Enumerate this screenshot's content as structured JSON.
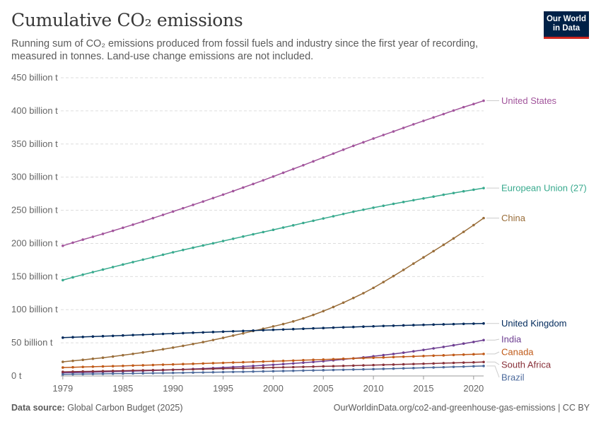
{
  "header": {
    "title": "Cumulative CO₂ emissions",
    "subtitle": "Running sum of CO₂ emissions produced from fossil fuels and industry since the first year of recording, measured in tonnes. Land-use change emissions are not included.",
    "logo_line1": "Our World",
    "logo_line2": "in Data"
  },
  "footer": {
    "source_label": "Data source:",
    "source_value": "Global Carbon Budget (2025)",
    "url": "OurWorldinData.org/co2-and-greenhouse-gas-emissions | CC BY"
  },
  "chart_data": {
    "type": "line",
    "title": "Cumulative CO₂ emissions",
    "x": [
      1979,
      1980,
      1981,
      1982,
      1983,
      1984,
      1985,
      1986,
      1987,
      1988,
      1989,
      1990,
      1991,
      1992,
      1993,
      1994,
      1995,
      1996,
      1997,
      1998,
      1999,
      2000,
      2001,
      2002,
      2003,
      2004,
      2005,
      2006,
      2007,
      2008,
      2009,
      2010,
      2011,
      2012,
      2013,
      2014,
      2015,
      2016,
      2017,
      2018,
      2019,
      2020,
      2021
    ],
    "xlim": [
      1978.8,
      2021
    ],
    "ylim": [
      0,
      450
    ],
    "y_ticks": [
      0,
      50,
      100,
      150,
      200,
      250,
      300,
      350,
      400,
      450
    ],
    "y_tick_labels": [
      "0 t",
      "50 billion t",
      "100 billion t",
      "150 billion t",
      "200 billion t",
      "250 billion t",
      "300 billion t",
      "350 billion t",
      "400 billion t",
      "450 billion t"
    ],
    "x_ticks": [
      1979,
      1985,
      1990,
      1995,
      2000,
      2005,
      2010,
      2015,
      2020
    ],
    "x_tick_labels": [
      "1979",
      "1985",
      "1990",
      "1995",
      "2000",
      "2005",
      "2010",
      "2015",
      "2020"
    ],
    "grid": true,
    "legend": "right",
    "units": "billion t",
    "series": [
      {
        "name": "United States",
        "color": "#a2559c",
        "values": [
          196.4,
          201.1,
          205.7,
          210.0,
          214.4,
          219.0,
          223.6,
          228.3,
          233.1,
          238.1,
          243.1,
          248.1,
          253.1,
          258.1,
          263.2,
          268.4,
          273.6,
          278.9,
          284.3,
          289.7,
          295.2,
          300.9,
          306.6,
          312.3,
          318.0,
          323.8,
          329.7,
          335.5,
          341.4,
          347.2,
          352.6,
          358.2,
          363.6,
          368.9,
          374.3,
          379.7,
          384.9,
          390.1,
          395.2,
          400.5,
          405.6,
          410.3,
          415.3
        ]
      },
      {
        "name": "European Union (27)",
        "color": "#38aa8e",
        "values": [
          144.6,
          148.8,
          152.8,
          156.7,
          160.5,
          164.3,
          168.1,
          171.8,
          175.5,
          179.2,
          182.9,
          186.6,
          190.1,
          193.5,
          196.9,
          200.2,
          203.6,
          207.0,
          210.4,
          213.8,
          217.1,
          220.5,
          223.9,
          227.3,
          230.8,
          234.2,
          237.6,
          241.0,
          244.4,
          247.8,
          250.8,
          253.9,
          256.8,
          259.7,
          262.5,
          265.2,
          267.9,
          270.6,
          273.4,
          276.0,
          278.6,
          281.0,
          283.5
        ]
      },
      {
        "name": "China",
        "color": "#996d39",
        "values": [
          21.3,
          22.8,
          24.3,
          25.9,
          27.5,
          29.3,
          31.3,
          33.3,
          35.5,
          37.9,
          40.3,
          42.8,
          45.4,
          48.2,
          51.1,
          54.2,
          57.5,
          60.9,
          64.3,
          67.8,
          71.2,
          74.7,
          78.3,
          82.3,
          86.9,
          92.1,
          97.8,
          104.0,
          110.6,
          117.6,
          124.9,
          132.9,
          141.7,
          150.7,
          160.0,
          169.5,
          178.9,
          188.3,
          197.8,
          207.5,
          217.4,
          227.6,
          238.2
        ]
      },
      {
        "name": "United Kingdom",
        "color": "#00295b",
        "values": [
          57.8,
          58.4,
          58.9,
          59.5,
          60.0,
          60.5,
          61.1,
          61.7,
          62.2,
          62.8,
          63.4,
          64.0,
          64.6,
          65.2,
          65.7,
          66.3,
          66.8,
          67.4,
          67.9,
          68.5,
          69.0,
          69.6,
          70.1,
          70.7,
          71.2,
          71.8,
          72.3,
          72.9,
          73.4,
          73.9,
          74.4,
          74.9,
          75.4,
          75.8,
          76.3,
          76.7,
          77.1,
          77.5,
          77.9,
          78.2,
          78.6,
          78.9,
          79.2
        ]
      },
      {
        "name": "India",
        "color": "#6d3e91",
        "values": [
          4.8,
          5.1,
          5.4,
          5.7,
          6.1,
          6.5,
          6.9,
          7.3,
          7.7,
          8.2,
          8.7,
          9.3,
          9.9,
          10.5,
          11.1,
          11.8,
          12.6,
          13.4,
          14.2,
          15.1,
          16.0,
          16.9,
          17.9,
          18.9,
          20.0,
          21.1,
          22.3,
          23.6,
          25.0,
          26.5,
          28.0,
          29.7,
          31.4,
          33.2,
          35.1,
          37.2,
          39.3,
          41.6,
          43.8,
          46.3,
          48.8,
          51.3,
          54.1
        ]
      },
      {
        "name": "Canada",
        "color": "#c05917",
        "values": [
          12.7,
          13.1,
          13.6,
          14.0,
          14.4,
          14.8,
          15.2,
          15.7,
          16.1,
          16.5,
          17.0,
          17.4,
          17.9,
          18.3,
          18.8,
          19.3,
          19.7,
          20.2,
          20.7,
          21.2,
          21.7,
          22.2,
          22.7,
          23.2,
          23.8,
          24.3,
          24.8,
          25.3,
          25.9,
          26.4,
          26.9,
          27.4,
          27.9,
          28.5,
          29.0,
          29.5,
          30.1,
          30.6,
          31.1,
          31.7,
          32.2,
          32.7,
          33.2
        ]
      },
      {
        "name": "South Africa",
        "color": "#883039",
        "values": [
          6.2,
          6.5,
          6.8,
          7.0,
          7.3,
          7.6,
          7.9,
          8.2,
          8.5,
          8.8,
          9.1,
          9.4,
          9.7,
          10.0,
          10.3,
          10.7,
          11.0,
          11.3,
          11.6,
          12.0,
          12.3,
          12.6,
          13.0,
          13.3,
          13.7,
          14.1,
          14.5,
          14.8,
          15.2,
          15.6,
          16.0,
          16.4,
          16.8,
          17.2,
          17.6,
          18.0,
          18.4,
          18.8,
          19.3,
          19.7,
          20.1,
          20.5,
          21.0
        ]
      },
      {
        "name": "Brazil",
        "color": "#4c6a9c",
        "values": [
          2.4,
          2.6,
          2.8,
          3.0,
          3.2,
          3.4,
          3.6,
          3.8,
          4.0,
          4.2,
          4.4,
          4.6,
          4.8,
          5.1,
          5.3,
          5.6,
          5.8,
          6.1,
          6.3,
          6.6,
          6.9,
          7.2,
          7.5,
          7.8,
          8.1,
          8.4,
          8.7,
          9.0,
          9.3,
          9.7,
          10.0,
          10.3,
          10.7,
          11.1,
          11.5,
          11.9,
          12.4,
          12.8,
          13.2,
          13.7,
          14.1,
          14.6,
          15.1
        ]
      }
    ],
    "end_labels": [
      "United States",
      "European Union (27)",
      "China",
      "United Kingdom",
      "India",
      "Canada",
      "South Africa",
      "Brazil"
    ]
  }
}
